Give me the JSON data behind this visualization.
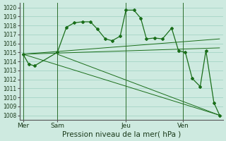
{
  "background_color": "#ceeae0",
  "grid_color": "#9dcfbf",
  "line_color": "#1a6e1a",
  "ylim": [
    1007.5,
    1020.5
  ],
  "ylabel_values": [
    1008,
    1009,
    1010,
    1011,
    1012,
    1013,
    1014,
    1015,
    1016,
    1017,
    1018,
    1019,
    1020
  ],
  "xlabel": "Pression niveau de la mer( hPa )",
  "xlabel_fontsize": 7.5,
  "xtick_labels": [
    "Mer",
    "Sam",
    "Jeu",
    "Ven"
  ],
  "xtick_positions": [
    0,
    3,
    9,
    14
  ],
  "xlim": [
    -0.3,
    17.5
  ],
  "series1_x": [
    0,
    0.5,
    1.0,
    3.0,
    3.8,
    4.5,
    5.2,
    5.9,
    6.5,
    7.2,
    7.8,
    8.5,
    9.0,
    9.7,
    10.3,
    10.8,
    11.5,
    12.2,
    13.0,
    13.6,
    14.2,
    14.8,
    15.5,
    16.0,
    16.7,
    17.2
  ],
  "series1_y": [
    1014.8,
    1013.7,
    1013.5,
    1015.0,
    1017.8,
    1018.3,
    1018.4,
    1018.4,
    1017.6,
    1016.5,
    1016.3,
    1016.8,
    1019.7,
    1019.7,
    1018.8,
    1016.5,
    1016.6,
    1016.5,
    1017.7,
    1015.2,
    1015.0,
    1012.1,
    1011.2,
    1015.2,
    1009.4,
    1008.0
  ],
  "trend_lines": [
    {
      "x": [
        0,
        17.2
      ],
      "y": [
        1014.8,
        1016.5
      ]
    },
    {
      "x": [
        0,
        17.2
      ],
      "y": [
        1014.8,
        1015.5
      ]
    },
    {
      "x": [
        0,
        17.2
      ],
      "y": [
        1014.8,
        1008.0
      ]
    },
    {
      "x": [
        3,
        17.2
      ],
      "y": [
        1014.8,
        1008.0
      ]
    }
  ],
  "vline_positions": [
    0,
    3,
    9,
    14
  ]
}
